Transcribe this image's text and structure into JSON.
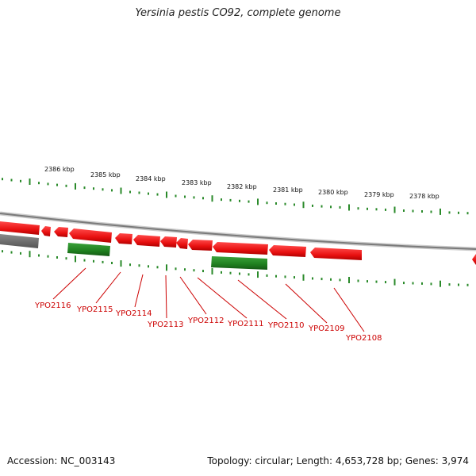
{
  "title": "Yersinia pestis CO92, complete genome",
  "accession": "Accession: NC_003143",
  "summary": "Topology: circular; Length: 4,653,728 bp; Genes: 3,974",
  "colors": {
    "forward_gene": "#ee1111",
    "reverse_gene": "#228822",
    "backbone": "#999999",
    "ticks": "#2a8a2a",
    "label": "#cc0000"
  },
  "scale_labels": [
    "2386 kbp",
    "2385 kbp",
    "2384 kbp",
    "2383 kbp",
    "2382 kbp",
    "2381 kbp",
    "2380 kbp",
    "2379 kbp",
    "2378 kbp"
  ],
  "gene_labels": [
    "YPO2116",
    "YPO2115",
    "YPO2114",
    "YPO2113",
    "YPO2112",
    "YPO2111",
    "YPO2110",
    "YPO2109",
    "YPO2108"
  ]
}
